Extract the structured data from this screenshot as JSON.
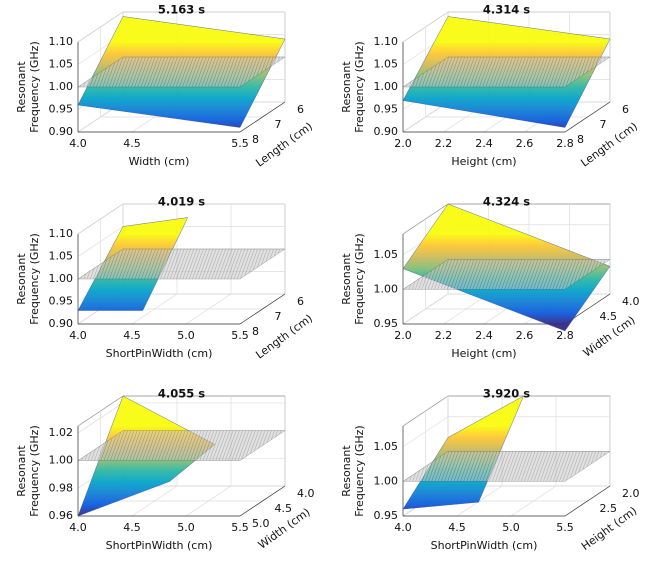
{
  "colormap": [
    "#352a87",
    "#0f5cdd",
    "#1481d6",
    "#06a4ca",
    "#2eb7a4",
    "#87bf77",
    "#d1bb59",
    "#fec832",
    "#f9fb0e"
  ],
  "chart_data": [
    {
      "type": "surface3d",
      "title": "5.163 s",
      "xlabel": "Width (cm)",
      "ylabel": "Length (cm)",
      "zlabel": [
        "Resonant",
        "Frequency (GHz)"
      ],
      "xlim": [
        4.0,
        5.5
      ],
      "xticks": [
        {
          "value": 4.0,
          "label": "4.0"
        },
        4.5,
        5.5
      ],
      "ylim": [
        8,
        6
      ],
      "yticks": [
        8,
        7,
        6
      ],
      "zlim": [
        0.9,
        1.1
      ],
      "zticks": [
        {
          "value": 0.9,
          "label": "0.90"
        },
        0.95,
        {
          "value": 1.0,
          "label": "1.00"
        },
        1.05,
        {
          "value": 1.1,
          "label": "1.10"
        }
      ],
      "plane": 1.0,
      "surface": {
        "x": [
          4.0,
          5.5
        ],
        "y": [
          8,
          6
        ],
        "z": [
          [
            0.96,
            0.91
          ],
          [
            1.09,
            1.04
          ]
        ]
      }
    },
    {
      "type": "surface3d",
      "title": "4.314 s",
      "xlabel": "Height (cm)",
      "ylabel": "Length (cm)",
      "zlabel": [
        "Resonant",
        "Frequency (GHz)"
      ],
      "xlim": [
        2.0,
        2.8
      ],
      "xticks": [
        {
          "value": 2.0,
          "label": "2.0"
        },
        2.2,
        2.4,
        2.6,
        2.8
      ],
      "ylim": [
        8,
        6
      ],
      "yticks": [
        8,
        7,
        6
      ],
      "zlim": [
        0.9,
        1.1
      ],
      "zticks": [
        {
          "value": 0.9,
          "label": "0.90"
        },
        0.95,
        {
          "value": 1.0,
          "label": "1.00"
        },
        1.05,
        {
          "value": 1.1,
          "label": "1.10"
        }
      ],
      "plane": 1.0,
      "surface": {
        "x": [
          2.0,
          2.8
        ],
        "y": [
          8,
          6
        ],
        "z": [
          [
            0.97,
            0.91
          ],
          [
            1.09,
            1.04
          ]
        ]
      }
    },
    {
      "type": "surface3d",
      "title": "4.019 s",
      "xlabel": "ShortPinWidth (cm)",
      "ylabel": "Length (cm)",
      "zlabel": [
        "Resonant",
        "Frequency (GHz)"
      ],
      "xlim": [
        4.0,
        5.5
      ],
      "xticks": [
        {
          "value": 4.0,
          "label": "4.0"
        },
        4.5,
        {
          "value": 5.0,
          "label": "5.0"
        },
        5.5
      ],
      "ylim": [
        8,
        6
      ],
      "yticks": [
        8,
        7,
        6
      ],
      "zlim": [
        0.9,
        1.1
      ],
      "zticks": [
        {
          "value": 0.9,
          "label": "0.90"
        },
        0.95,
        {
          "value": 1.0,
          "label": "1.00"
        },
        1.05,
        {
          "value": 1.1,
          "label": "1.10"
        }
      ],
      "plane": 1.0,
      "surface": {
        "x": [
          4.0,
          4.6
        ],
        "y": [
          8,
          6
        ],
        "z": [
          [
            0.93,
            0.93
          ],
          [
            1.05,
            1.07
          ]
        ]
      }
    },
    {
      "type": "surface3d",
      "title": "4.324 s",
      "xlabel": "Height (cm)",
      "ylabel": "Width (cm)",
      "zlabel": [
        "Resonant",
        "Frequency (GHz)"
      ],
      "xlim": [
        2.0,
        2.8
      ],
      "xticks": [
        {
          "value": 2.0,
          "label": "2.0"
        },
        2.2,
        2.4,
        2.6,
        2.8
      ],
      "ylim": [
        5.0,
        4.0
      ],
      "yticks": [
        4.5,
        {
          "value": 4.0,
          "label": "4.0"
        }
      ],
      "zlim": [
        0.95,
        1.08
      ],
      "zticks": [
        0.95,
        {
          "value": 1.0,
          "label": "1.00"
        },
        1.05
      ],
      "plane": 1.0,
      "surface": {
        "x": [
          2.0,
          2.8
        ],
        "y": [
          5.0,
          4.0
        ],
        "z": [
          [
            1.03,
            0.94
          ],
          [
            1.08,
            0.99
          ]
        ]
      }
    },
    {
      "type": "surface3d",
      "title": "4.055 s",
      "xlabel": "ShortPinWidth (cm)",
      "ylabel": "Width (cm)",
      "zlabel": [
        "Resonant",
        "Frequency (GHz)"
      ],
      "xlim": [
        4.0,
        5.5
      ],
      "xticks": [
        {
          "value": 4.0,
          "label": "4.0"
        },
        4.5,
        {
          "value": 5.0,
          "label": "5.0"
        },
        5.5
      ],
      "ylim": [
        5.0,
        4.0
      ],
      "yticks": [
        {
          "value": 5.0,
          "label": "5.0"
        },
        4.5,
        {
          "value": 4.0,
          "label": "4.0"
        }
      ],
      "zlim": [
        0.96,
        1.025
      ],
      "zticks": [
        0.96,
        0.98,
        {
          "value": 1.0,
          "label": "1.00"
        },
        1.02
      ],
      "plane": 1.0,
      "surface": {
        "x": [
          4.0,
          4.85
        ],
        "y": [
          5.0,
          4.0
        ],
        "z": [
          [
            0.96,
            0.985
          ],
          [
            1.025,
            0.99
          ]
        ]
      }
    },
    {
      "type": "surface3d",
      "title": "3.920 s",
      "xlabel": "ShortPinWidth (cm)",
      "ylabel": "Height (cm)",
      "zlabel": [
        "Resonant",
        "Frequency (GHz)"
      ],
      "xlim": [
        4.0,
        5.5
      ],
      "xticks": [
        {
          "value": 4.0,
          "label": "4.0"
        },
        4.5,
        {
          "value": 5.0,
          "label": "5.0"
        },
        5.5
      ],
      "ylim": [
        3.0,
        2.0
      ],
      "yticks": [
        2.5,
        {
          "value": 2.0,
          "label": "2.0"
        }
      ],
      "zlim": [
        0.95,
        1.08
      ],
      "zticks": [
        0.95,
        {
          "value": 1.0,
          "label": "1.00"
        },
        1.05
      ],
      "plane": 1.0,
      "surface": {
        "x": [
          4.0,
          4.7
        ],
        "y": [
          3.0,
          2.0
        ],
        "z": [
          [
            0.96,
            0.97
          ],
          [
            1.02,
            1.08
          ]
        ]
      }
    }
  ]
}
